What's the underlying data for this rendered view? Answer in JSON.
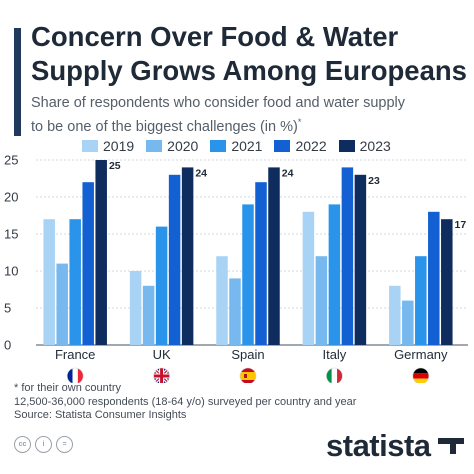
{
  "header": {
    "title_line1": "Concern Over Food & Water",
    "title_line2": "Supply Grows Among Europeans",
    "subtitle_line1": "Share of respondents who consider food and water supply",
    "subtitle_line2": "to be one of the biggest challenges (in %)",
    "subtitle_mark": "*"
  },
  "chart_data": {
    "type": "bar",
    "categories": [
      "France",
      "UK",
      "Spain",
      "Italy",
      "Germany"
    ],
    "series": [
      {
        "name": "2019",
        "color": "#a9d3f5",
        "values": [
          17,
          10,
          12,
          18,
          8
        ]
      },
      {
        "name": "2020",
        "color": "#77b9ef",
        "values": [
          11,
          8,
          9,
          12,
          6
        ]
      },
      {
        "name": "2021",
        "color": "#2a93ea",
        "values": [
          17,
          16,
          19,
          19,
          12
        ]
      },
      {
        "name": "2022",
        "color": "#1260d1",
        "values": [
          22,
          23,
          22,
          24,
          18
        ]
      },
      {
        "name": "2023",
        "color": "#0e2c5e",
        "values": [
          25,
          24,
          24,
          23,
          17
        ]
      }
    ],
    "data_labels": {
      "series": "2023",
      "values": [
        "25",
        "24",
        "24",
        "23",
        "17"
      ]
    },
    "y_ticks": [
      "0",
      "5",
      "10",
      "15",
      "20",
      "25"
    ],
    "ylim": [
      0,
      25
    ],
    "grid": true,
    "legend_position": "top",
    "category_flag_icons": [
      "france-flag-icon",
      "uk-flag-icon",
      "spain-flag-icon",
      "italy-flag-icon",
      "germany-flag-icon"
    ]
  },
  "notes": {
    "footnote": "* for their own country",
    "sample": "12,500-36,000 respondents (18-64 y/o) surveyed per country and year",
    "source": "Source: Statista Consumer Insights"
  },
  "footer": {
    "icons": [
      "cc-icon",
      "by-icon",
      "equals-icon"
    ],
    "logo_text": "statista"
  }
}
